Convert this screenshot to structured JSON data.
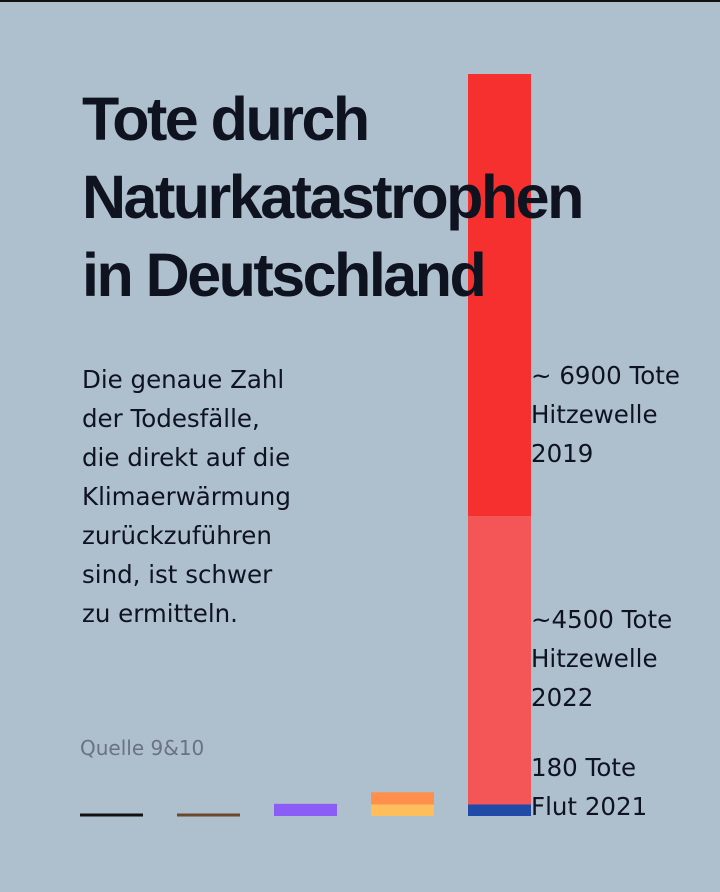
{
  "title_lines": [
    "Tote durch",
    "Naturkatastrophen",
    "in Deutschland"
  ],
  "description_lines": [
    "Die genaue Zahl",
    "der Todesfälle,",
    "die direkt auf die",
    "Klimaerwärmung",
    "zurückzuführen",
    "sind, ist schwer",
    "zu ermitteln."
  ],
  "source": "Quelle 9&10",
  "chart_data": {
    "type": "bar",
    "stacked": true,
    "title": "",
    "xlabel": "",
    "ylabel": "",
    "ylim": [
      0,
      11580
    ],
    "grid": false,
    "stacks": [
      {
        "segments": [
          {
            "value": 0,
            "color": "#111111"
          }
        ]
      },
      {
        "segments": [
          {
            "value": 0,
            "color": "#6b4a2b"
          }
        ]
      },
      {
        "segments": [
          {
            "value": 190,
            "color": "#8b5cf6"
          }
        ]
      },
      {
        "segments": [
          {
            "value": 180,
            "color": "#ffbe5c"
          },
          {
            "value": 190,
            "color": "#ff8f4a"
          }
        ]
      },
      {
        "segments": [
          {
            "value": 180,
            "color": "#1f4aa8",
            "label": [
              "180 Tote",
              "Flut 2021"
            ]
          },
          {
            "value": 4500,
            "color": "#f45557",
            "label": [
              "~4500 Tote",
              "Hitzewelle",
              "2022"
            ]
          },
          {
            "value": 6900,
            "color": "#f62f2f",
            "label": [
              "~ 6900 Tote",
              "Hitzewelle",
              "2019"
            ]
          }
        ]
      }
    ]
  }
}
